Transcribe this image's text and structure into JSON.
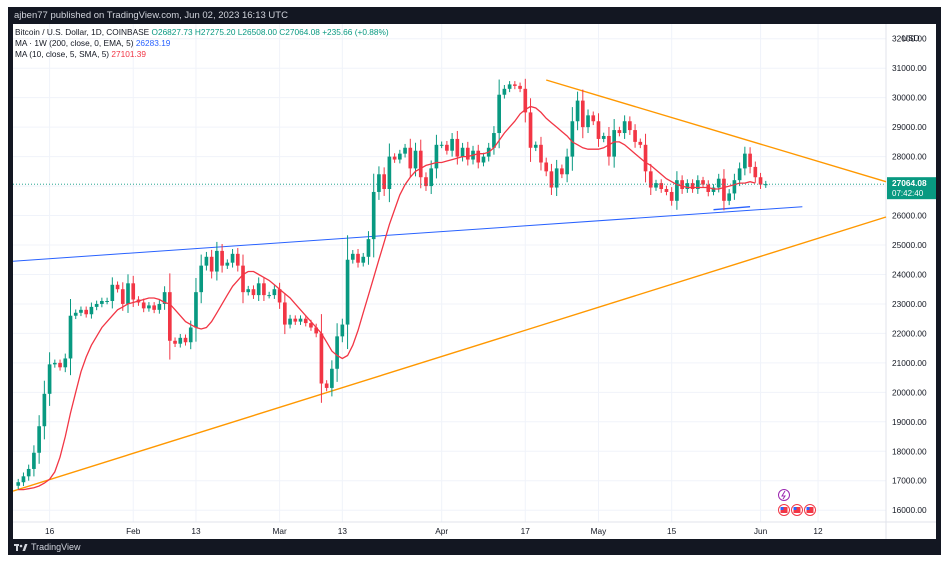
{
  "header": {
    "publish_text": "ajben77 published on TradingView.com, Jun 02, 2023 16:13 UTC"
  },
  "legend": {
    "symbol": "Bitcoin / U.S. Dollar, 1D, COINBASE",
    "ohlc": "O26827.73  H27275.20  L26508.00  C27064.08  +235.66 (+0.88%)",
    "ma1_label": "MA · 1W (200, close, 0, EMA, 5)",
    "ma1_value": "26283.19",
    "ma2_label": "MA (10, close, 5, SMA, 5)",
    "ma2_value": "27101.39"
  },
  "price_scale": {
    "currency": "USD",
    "last_price": "27064.08",
    "countdown": "07:42:40"
  },
  "footer": {
    "brand": "TradingView"
  },
  "colors": {
    "up": "#089981",
    "down": "#f23645",
    "ma_sma": "#f23645",
    "ma_ema": "#2962ff",
    "trendline": "#ff9800",
    "background": "#ffffff",
    "frame": "#131722"
  },
  "chart_data": {
    "type": "candlestick",
    "title": "Bitcoin / U.S. Dollar, 1D, COINBASE",
    "ylim": [
      15600,
      32500
    ],
    "y_ticks": [
      16000,
      17000,
      18000,
      19000,
      20000,
      21000,
      22000,
      23000,
      24000,
      25000,
      26000,
      27000,
      28000,
      29000,
      30000,
      31000,
      32000
    ],
    "y_tick_labels": [
      "16000.00",
      "17000.00",
      "18000.00",
      "19000.00",
      "20000.00",
      "21000.00",
      "22000.00",
      "23000.00",
      "24000.00",
      "25000.00",
      "26000.00",
      "27000.00",
      "28000.00",
      "29000.00",
      "30000.00",
      "31000.00",
      "32000.00"
    ],
    "x_tick_labels": [
      {
        "label": "16",
        "index": 6
      },
      {
        "label": "Feb",
        "index": 22
      },
      {
        "label": "13",
        "index": 34
      },
      {
        "label": "Mar",
        "index": 50
      },
      {
        "label": "13",
        "index": 62
      },
      {
        "label": "Apr",
        "index": 81
      },
      {
        "label": "17",
        "index": 97
      },
      {
        "label": "May",
        "index": 111
      },
      {
        "label": "15",
        "index": 125
      },
      {
        "label": "Jun",
        "index": 142
      },
      {
        "label": "12",
        "index": 153
      }
    ],
    "x_range": [
      -1,
      166
    ],
    "candles_close": [
      16950,
      17150,
      17400,
      17950,
      18850,
      19950,
      20950,
      21000,
      20850,
      21150,
      22600,
      22700,
      22800,
      22650,
      22900,
      23000,
      23100,
      23100,
      23650,
      23500,
      23000,
      23700,
      23150,
      23050,
      22850,
      22950,
      22800,
      23000,
      23400,
      21750,
      21650,
      21850,
      21700,
      22200,
      23400,
      24300,
      24600,
      24100,
      24800,
      24300,
      24400,
      24700,
      24300,
      23400,
      23500,
      23300,
      23700,
      23300,
      23300,
      23500,
      23050,
      22300,
      22500,
      22400,
      22500,
      22350,
      22200,
      22000,
      20300,
      20150,
      20800,
      21900,
      22300,
      24500,
      24700,
      24400,
      24600,
      25200,
      26800,
      27400,
      26900,
      28000,
      27900,
      28100,
      28300,
      27600,
      28200,
      27300,
      27000,
      27600,
      28400,
      28400,
      28200,
      28600,
      28000,
      28300,
      27900,
      28200,
      27800,
      28000,
      28300,
      28800,
      30100,
      30300,
      30450,
      30400,
      30300,
      29500,
      28300,
      28400,
      27800,
      27500,
      26950,
      27600,
      27400,
      28000,
      29200,
      29900,
      29000,
      29400,
      29200,
      28600,
      28700,
      28000,
      28900,
      28800,
      29200,
      28900,
      28500,
      28400,
      27500,
      26950,
      27100,
      26900,
      26800,
      26500,
      27200,
      26900,
      27100,
      26900,
      27200,
      27050,
      26800,
      26950,
      27250,
      26500,
      26750,
      27200,
      27600,
      28100,
      27650,
      27300,
      27050,
      27064
    ],
    "ma_sma_10": {
      "name": "MA (10, close, 5, SMA, 5)",
      "values": [
        16700,
        16700,
        16730,
        16760,
        16820,
        16920,
        17050,
        17300,
        17800,
        18500,
        19300,
        20000,
        20700,
        21200,
        21600,
        21900,
        22200,
        22400,
        22600,
        22800,
        22900,
        23000,
        23050,
        23100,
        23150,
        23200,
        23200,
        23150,
        23050,
        23000,
        22800,
        22600,
        22400,
        22300,
        22200,
        22150,
        22200,
        22400,
        22700,
        23000,
        23300,
        23600,
        23800,
        24000,
        24100,
        24100,
        24000,
        23900,
        23800,
        23650,
        23500,
        23350,
        23200,
        23000,
        22800,
        22600,
        22400,
        22200,
        22000,
        21700,
        21400,
        21250,
        21150,
        21250,
        21600,
        22100,
        22700,
        23300,
        23900,
        24500,
        25100,
        25700,
        26200,
        26700,
        27050,
        27300,
        27500,
        27600,
        27700,
        27750,
        27800,
        27800,
        27850,
        27900,
        27950,
        28000,
        28000,
        28050,
        28100,
        28100,
        28150,
        28300,
        28550,
        28800,
        29000,
        29200,
        29450,
        29600,
        29700,
        29650,
        29500,
        29300,
        29150,
        29000,
        28850,
        28700,
        28500,
        28400,
        28300,
        28250,
        28250,
        28250,
        28300,
        28400,
        28500,
        28500,
        28400,
        28250,
        28100,
        27950,
        27800,
        27700,
        27550,
        27400,
        27250,
        27150,
        27050,
        27000,
        26950,
        26950,
        26950,
        26950,
        26950,
        26900,
        26900,
        26950,
        27000,
        27050,
        27100,
        27100,
        27150,
        27100
      ]
    },
    "ma_ema_200w": {
      "name": "MA · 1W (200, close, 0, EMA, 5)",
      "from": [
        -1,
        24450
      ],
      "to": [
        150,
        26300
      ]
    },
    "trendlines": [
      {
        "name": "upper",
        "from": [
          101,
          30600
        ],
        "to": [
          166,
          27150
        ]
      },
      {
        "name": "lower",
        "from": [
          -1,
          16650
        ],
        "to": [
          166,
          25950
        ]
      },
      {
        "name": "ema-extension",
        "from": [
          133,
          26200
        ],
        "to": [
          140,
          26300
        ]
      }
    ],
    "last_price": 27064.08
  }
}
